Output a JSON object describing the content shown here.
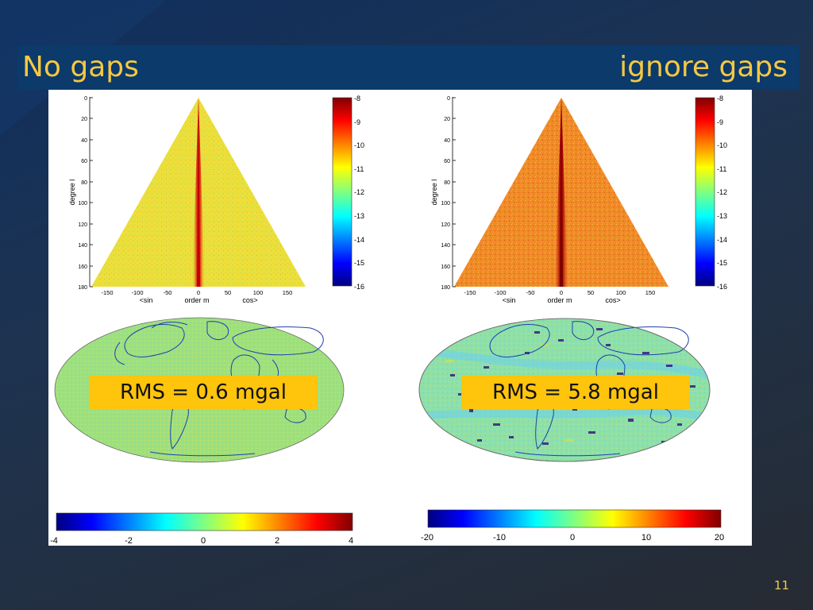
{
  "slide": {
    "title_left": "No gaps",
    "title_right": "ignore gaps",
    "page_number": "11"
  },
  "left_panel": {
    "rms_label": "RMS = 0.6 mgal"
  },
  "right_panel": {
    "rms_label": "RMS = 5.8 mgal"
  },
  "triangle_plot": {
    "ylabel": "degree l",
    "xlabel": "order m",
    "x_side_left": "<sin",
    "x_side_right": "cos>",
    "y_ticks": [
      "0",
      "20",
      "40",
      "60",
      "80",
      "100",
      "120",
      "140",
      "160",
      "180"
    ],
    "x_ticks": [
      "-150",
      "-100",
      "-50",
      "0",
      "50",
      "100",
      "150"
    ],
    "colorbar_ticks": [
      "-8",
      "-9",
      "-10",
      "-11",
      "-12",
      "-13",
      "-14",
      "-15",
      "-16"
    ]
  },
  "left_map_colorbar_ticks": [
    "-4",
    "-2",
    "0",
    "2",
    "4"
  ],
  "right_map_colorbar_ticks": [
    "-20",
    "-10",
    "0",
    "10",
    "20"
  ],
  "colors": {
    "title_text": "#f6c842",
    "rms_box": "#ffc40c",
    "background": "#1b3356"
  }
}
